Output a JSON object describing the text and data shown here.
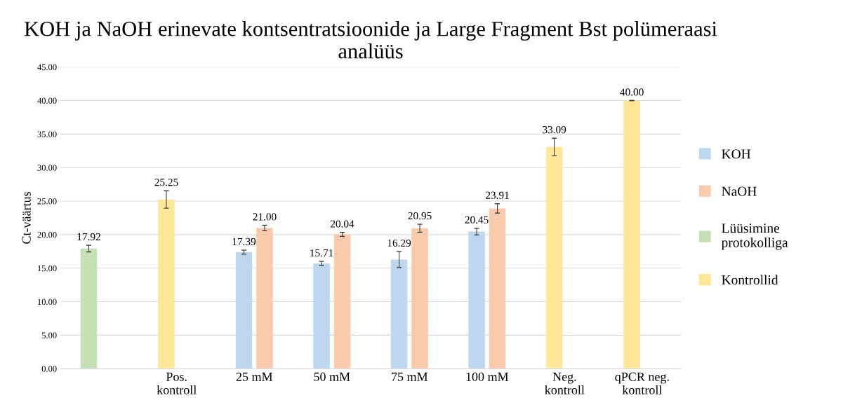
{
  "chart_data": {
    "type": "bar",
    "title": "KOH ja NaOH erinevate kontsentratsioonide ja Large Fragment Bst polümeraasi analüüs",
    "ylabel": "Ct-väärtus",
    "categories": [
      null,
      "Pos.\nkontroll",
      "25 mM",
      "50 mM",
      "75 mM",
      "100 mM",
      "Neg.\nkontroll",
      "qPCR neg.\nkontroll"
    ],
    "series": [
      {
        "name": "KOH",
        "color": "#bdd7ee",
        "values": [
          null,
          null,
          17.39,
          15.71,
          16.29,
          20.45,
          null,
          null
        ],
        "errors": [
          null,
          null,
          0.3,
          0.3,
          1.2,
          0.5,
          null,
          null
        ],
        "value_labels": [
          null,
          null,
          "17.39",
          "15.71",
          "16.29",
          "20.45",
          null,
          null
        ]
      },
      {
        "name": "NaOH",
        "color": "#f8cbad",
        "values": [
          null,
          null,
          21.0,
          20.04,
          20.95,
          23.91,
          null,
          null
        ],
        "errors": [
          null,
          null,
          0.4,
          0.3,
          0.6,
          0.7,
          null,
          null
        ],
        "value_labels": [
          null,
          null,
          "21.00",
          "20.04",
          "20.95",
          "23.91",
          null,
          null
        ]
      },
      {
        "name": "Lüüsimine\nprotokolliga",
        "color": "#c5e0b4",
        "values": [
          17.92,
          null,
          null,
          null,
          null,
          null,
          null,
          null
        ],
        "errors": [
          0.5,
          null,
          null,
          null,
          null,
          null,
          null,
          null
        ],
        "value_labels": [
          "17.92",
          null,
          null,
          null,
          null,
          null,
          null,
          null
        ]
      },
      {
        "name": "Kontrollid",
        "color": "#ffe699",
        "values": [
          null,
          25.25,
          null,
          null,
          null,
          null,
          33.09,
          40.0
        ],
        "errors": [
          null,
          1.3,
          null,
          null,
          null,
          null,
          1.3,
          0
        ],
        "value_labels": [
          null,
          "25.25",
          null,
          null,
          null,
          null,
          "33.09",
          "40.00"
        ]
      }
    ],
    "ylim": [
      0,
      45
    ],
    "yticks": [
      {
        "value": 0,
        "label": "0.00"
      },
      {
        "value": 5,
        "label": "5.00"
      },
      {
        "value": 10,
        "label": "10.00"
      },
      {
        "value": 15,
        "label": "15.00"
      },
      {
        "value": 20,
        "label": "20.00"
      },
      {
        "value": 25,
        "label": "25.00"
      },
      {
        "value": 30,
        "label": "30.00"
      },
      {
        "value": 35,
        "label": "35.00"
      },
      {
        "value": 40,
        "label": "40.00"
      },
      {
        "value": 45,
        "label": "45.00"
      }
    ],
    "grid": "y",
    "legend": "right"
  }
}
